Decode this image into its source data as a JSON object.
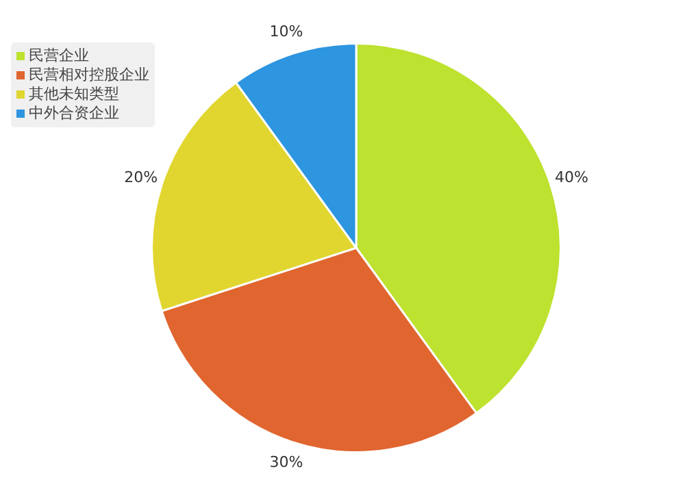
{
  "chart_data": {
    "type": "pie",
    "categories": [
      "民营企业",
      "民营相对控股企业",
      "其他未知类型",
      "中外合资企业"
    ],
    "values": [
      40,
      30,
      20,
      10
    ],
    "colors": [
      "#bde22f",
      "#e0652f",
      "#e0d62f",
      "#2e95e0"
    ],
    "value_labels": [
      "40%",
      "30%",
      "20%",
      "10%"
    ],
    "legend": "top left"
  }
}
